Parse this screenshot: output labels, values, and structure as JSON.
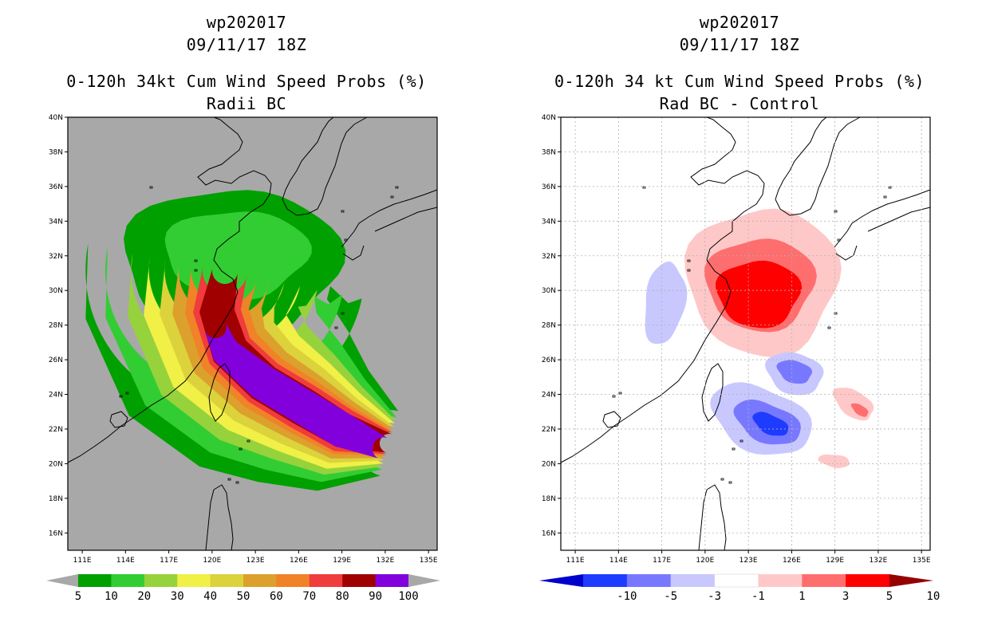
{
  "colors": {
    "land_sea_gray": "#a8a8a8",
    "white": "#ffffff",
    "prob_scale": [
      "#00a000",
      "#32cd32",
      "#96d23c",
      "#f0f046",
      "#dcd23c",
      "#dca02d",
      "#f08228",
      "#f03c3c",
      "#a00000",
      "#8200dc"
    ],
    "diff_scale": [
      "#0000cd",
      "#1e3cff",
      "#7878ff",
      "#c8c8ff",
      "#ffffff",
      "#ffc8c8",
      "#ff6e6e",
      "#ff0000",
      "#960000"
    ]
  },
  "left": {
    "title_line1": "wp202017",
    "title_line2": "09/11/17 18Z",
    "title_line3": "0-120h 34kt Cum Wind Speed Probs (%)",
    "title_line4": "Radii BC",
    "colorbar_labels": [
      "5",
      "10",
      "20",
      "30",
      "40",
      "50",
      "60",
      "70",
      "80",
      "90",
      "100"
    ]
  },
  "right": {
    "title_line1": "wp202017",
    "title_line2": "09/11/17 18Z",
    "title_line3": "0-120h 34 kt Cum Wind Speed Probs (%)",
    "title_line4": "Rad BC - Control",
    "colorbar_labels": [
      "-10",
      "-5",
      "-3",
      "-1",
      "1",
      "3",
      "5",
      "10"
    ]
  },
  "axes": {
    "lat_labels": [
      "40N",
      "38N",
      "36N",
      "34N",
      "32N",
      "30N",
      "28N",
      "26N",
      "24N",
      "22N",
      "20N",
      "18N",
      "16N"
    ],
    "lon_labels": [
      "111E",
      "114E",
      "117E",
      "120E",
      "123E",
      "126E",
      "129E",
      "132E",
      "135E"
    ]
  }
}
